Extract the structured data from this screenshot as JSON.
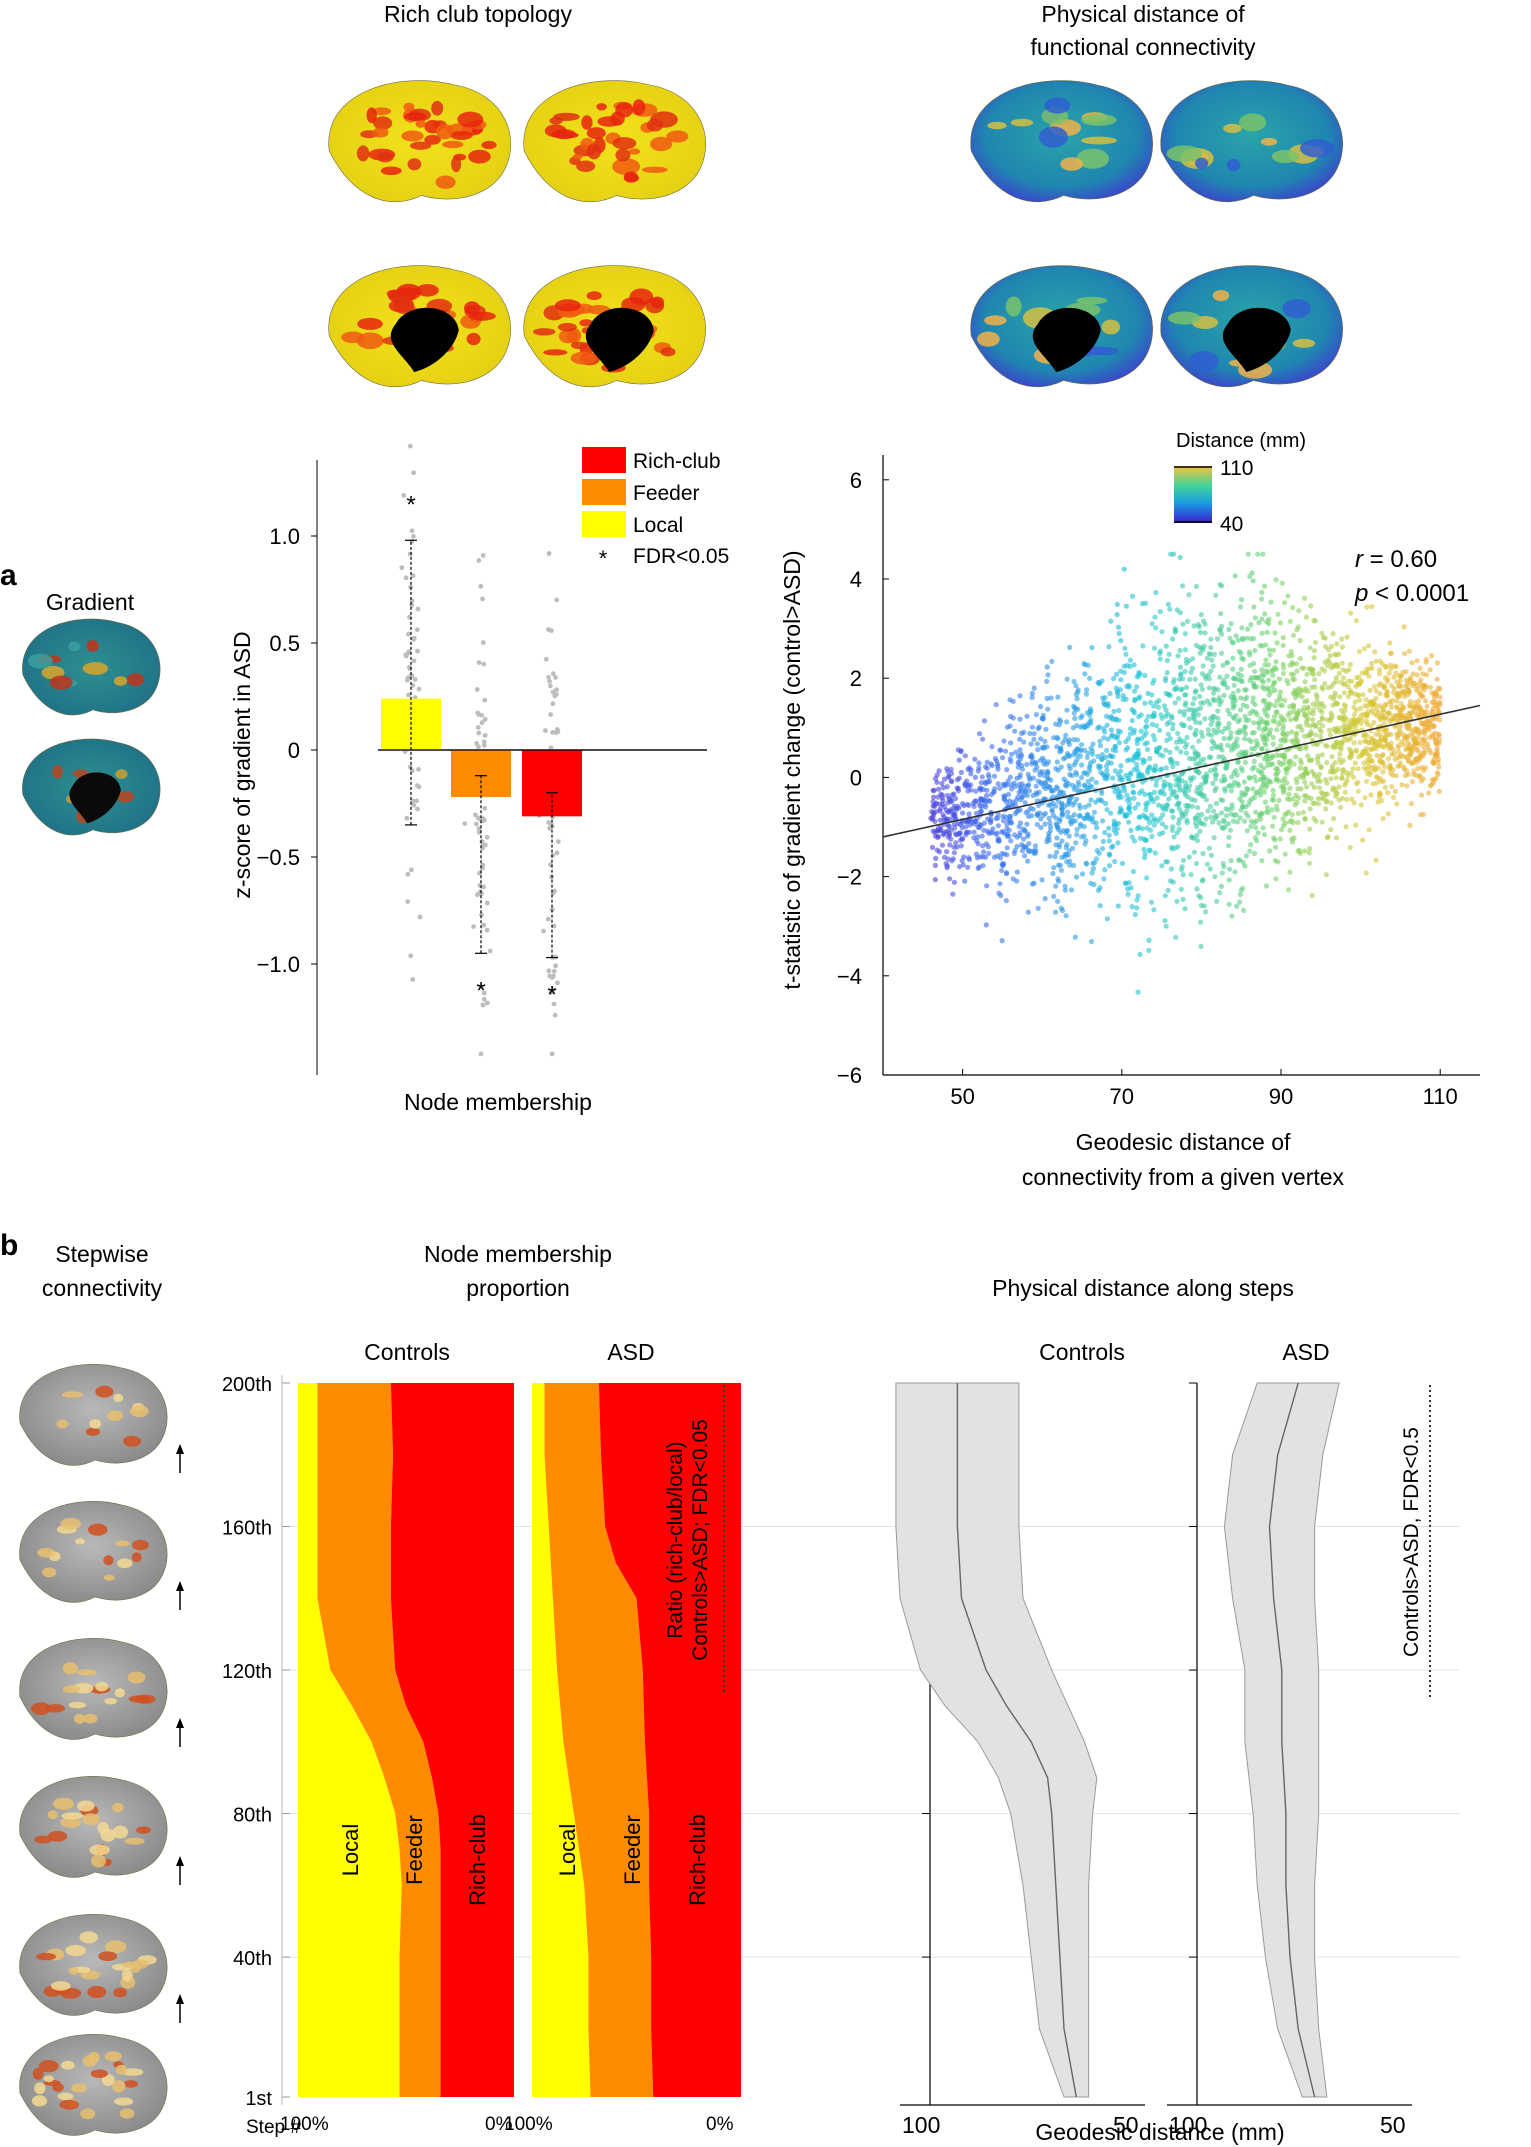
{
  "top": {
    "rich_club_title": "Rich club topology",
    "physical_title_line1": "Physical distance of",
    "physical_title_line2": "functional connectivity"
  },
  "panel_a": {
    "letter": "a",
    "gradient_label": "Gradient",
    "bar_chart": {
      "ylabel": "z-score of gradient in ASD",
      "xlabel": "Node membership",
      "yticks": [
        "1.0",
        "0.5",
        "0",
        "−0.5",
        "−1.0"
      ],
      "legend": [
        "Rich-club",
        "Feeder",
        "Local"
      ],
      "legend_note": "FDR<0.05",
      "star": "*"
    },
    "scatter": {
      "ylabel": "t-statistic of gradient change (control>ASD)",
      "xlabel_line1": "Geodesic distance of",
      "xlabel_line2": "connectivity from a given vertex",
      "yticks": [
        "6",
        "4",
        "2",
        "0",
        "−2",
        "−4",
        "−6"
      ],
      "xticks": [
        "50",
        "70",
        "90",
        "110"
      ],
      "colorbar_title": "Distance (mm)",
      "colorbar_max": "110",
      "colorbar_min": "40",
      "stat_r_sym": "r",
      "stat_r_val": " = 0.60",
      "stat_p_sym": "p",
      "stat_p_val": " < 0.0001"
    }
  },
  "panel_b": {
    "letter": "b",
    "stepwise_line1": "Stepwise",
    "stepwise_line2": "connectivity",
    "node_title_line1": "Node membership",
    "node_title_line2": "proportion",
    "physical_title": "Physical distance along steps",
    "controls": "Controls",
    "asd": "ASD",
    "step_ticks": [
      "200th",
      "160th",
      "120th",
      "80th",
      "40th",
      "1st"
    ],
    "step_label": "Step #",
    "pct_left": "100%",
    "pct_right": "0%",
    "band_local": "Local",
    "band_feeder": "Feeder",
    "band_richclub": "Rich-club",
    "ratio_line1": "Ratio (rich-club/local)",
    "ratio_line2": "Controls>ASD; FDR<0.05",
    "dist_note": "Controls>ASD, FDR<0.5",
    "dist_xticks": [
      "100",
      "50"
    ],
    "dist_xlabel": "Geodesic distance (mm)"
  },
  "chart_data": [
    {
      "type": "bar",
      "categories": [
        "Local",
        "Feeder",
        "Rich-club"
      ],
      "values": [
        0.24,
        -0.22,
        -0.31
      ],
      "error_low": [
        -0.35,
        -0.95,
        -0.97
      ],
      "error_high": [
        0.98,
        -0.12,
        -0.2
      ],
      "significant": [
        true,
        true,
        true
      ],
      "colors": [
        "#ffff00",
        "#ff8c00",
        "#ff0000"
      ],
      "ylabel": "z-score of gradient in ASD",
      "xlabel": "Node membership",
      "ylim": [
        -1.45,
        1.45
      ]
    },
    {
      "type": "scatter",
      "ylabel": "t-statistic of gradient change (control>ASD)",
      "xlabel": "Geodesic distance of connectivity from a given vertex",
      "xlim": [
        40,
        115
      ],
      "ylim": [
        -6,
        6.5
      ],
      "fit_line": {
        "x": [
          40,
          115
        ],
        "y": [
          -1.2,
          1.45
        ]
      },
      "r": 0.6,
      "p": "< 0.0001",
      "point_cloud": {
        "x_range": [
          46,
          110
        ],
        "center_line": {
          "x": [
            46,
            70,
            90,
            110
          ],
          "y": [
            -0.9,
            0.2,
            0.8,
            1.1
          ]
        },
        "spread_sd": {
          "x": [
            46,
            60,
            70,
            80,
            90,
            100,
            110
          ],
          "sd": [
            0.5,
            1.1,
            1.4,
            1.6,
            1.3,
            0.9,
            0.6
          ]
        }
      },
      "colorbar": {
        "title": "Distance (mm)",
        "range": [
          40,
          110
        ]
      }
    },
    {
      "type": "area",
      "title": "Controls",
      "steps": [
        1,
        20,
        40,
        60,
        70,
        80,
        90,
        100,
        110,
        120,
        140,
        160,
        180,
        200
      ],
      "local_boundary_pct": [
        47,
        47,
        47,
        48,
        47,
        45,
        40,
        34,
        25,
        15,
        9,
        9,
        9,
        9
      ],
      "feeder_boundary_pct": [
        66,
        66,
        66,
        66,
        66,
        65,
        62,
        58,
        50,
        45,
        43,
        43,
        44,
        43
      ],
      "series": [
        {
          "name": "Local"
        },
        {
          "name": "Feeder"
        },
        {
          "name": "Rich-club"
        }
      ]
    },
    {
      "type": "area",
      "title": "ASD",
      "steps": [
        1,
        20,
        40,
        60,
        80,
        100,
        120,
        140,
        150,
        160,
        180,
        200
      ],
      "local_boundary_pct": [
        28,
        27,
        27,
        25,
        20,
        15,
        12,
        10,
        9,
        8,
        6,
        6
      ],
      "feeder_boundary_pct": [
        58,
        57,
        57,
        56,
        56,
        54,
        53,
        50,
        40,
        35,
        33,
        32
      ],
      "series": [
        {
          "name": "Local"
        },
        {
          "name": "Feeder"
        },
        {
          "name": "Rich-club"
        }
      ]
    },
    {
      "type": "line",
      "title": "Controls",
      "xlabel": "Geodesic distance (mm)",
      "x_axis_reversed": true,
      "steps": [
        1,
        20,
        40,
        60,
        80,
        90,
        100,
        110,
        120,
        140,
        160,
        180,
        200
      ],
      "mean_mm": [
        57,
        60,
        61,
        62,
        63,
        64,
        68,
        74,
        79,
        85,
        86,
        86,
        86
      ],
      "band_half_width_mm": [
        3,
        6,
        7,
        8,
        10,
        12,
        13,
        15,
        16,
        15,
        15,
        15,
        15
      ]
    },
    {
      "type": "line",
      "title": "ASD",
      "xlabel": "Geodesic distance (mm)",
      "x_axis_reversed": true,
      "steps": [
        1,
        20,
        40,
        60,
        80,
        100,
        120,
        140,
        160,
        180,
        200
      ],
      "mean_mm": [
        64,
        68,
        70,
        71,
        71,
        72,
        72,
        74,
        75,
        73,
        68
      ],
      "band_half_width_mm": [
        3,
        5,
        6,
        7,
        8,
        9,
        9,
        10,
        11,
        11,
        10
      ]
    }
  ]
}
